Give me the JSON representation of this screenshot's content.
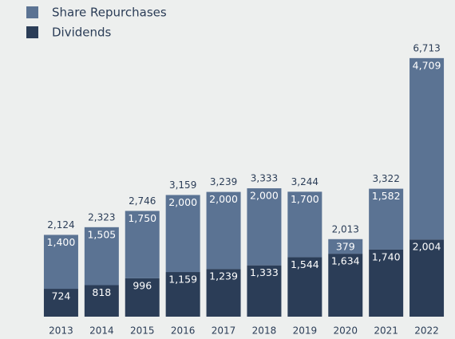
{
  "chart_data": {
    "type": "stacked-bar",
    "categories": [
      "2013",
      "2014",
      "2015",
      "2016",
      "2017",
      "2018",
      "2019",
      "2020",
      "2021",
      "2022"
    ],
    "series": [
      {
        "name": "Dividends",
        "color": "#2b3d57",
        "values": [
          724,
          818,
          996,
          1159,
          1239,
          1333,
          1544,
          1634,
          1740,
          2004
        ],
        "value_labels": [
          "724",
          "818",
          "996",
          "1,159",
          "1,239",
          "1,333",
          "1,544",
          "1,634",
          "1,740",
          "2,004"
        ]
      },
      {
        "name": "Share Repurchases",
        "color": "#5b7393",
        "values": [
          1400,
          1505,
          1750,
          2000,
          2000,
          2000,
          1700,
          379,
          1582,
          4709
        ],
        "value_labels": [
          "1,400",
          "1,505",
          "1,750",
          "2,000",
          "2,000",
          "2,000",
          "1,700",
          "379",
          "1,582",
          "4,709"
        ]
      }
    ],
    "totals": [
      2124,
      2323,
      2746,
      3159,
      3239,
      3333,
      3244,
      2013,
      3322,
      6713
    ],
    "total_labels": [
      "2,124",
      "2,323",
      "2,746",
      "3,159",
      "3,239",
      "3,333",
      "3,244",
      "2,013",
      "3,322",
      "6,713"
    ],
    "ylim": [
      0,
      7000
    ]
  }
}
